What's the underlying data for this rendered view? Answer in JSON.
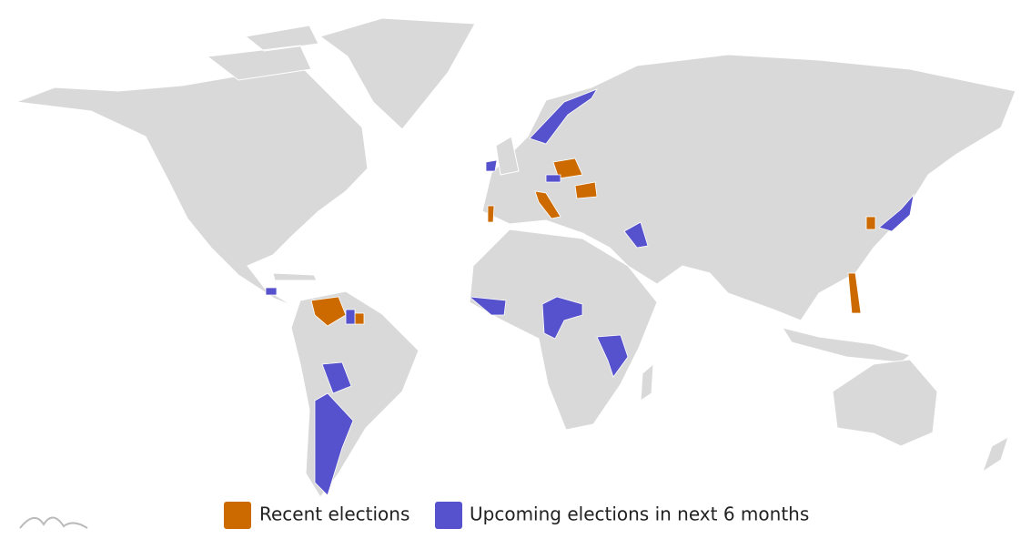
{
  "legend": {
    "items": [
      {
        "name": "Recent elections",
        "color": "#cc6a00"
      },
      {
        "name": "Upcoming elections in next 6 months",
        "color": "#5651cc"
      }
    ]
  }
}
